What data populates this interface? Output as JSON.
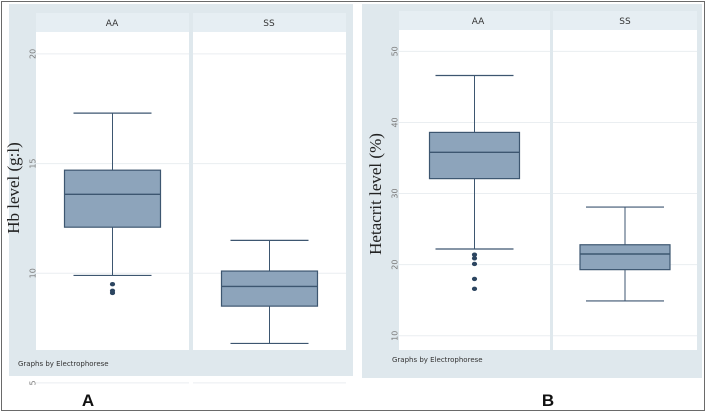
{
  "chart_data": [
    {
      "id": "A",
      "type": "boxplot",
      "panel_label": "A",
      "ylabel": "Hb level (g:l)",
      "ylim": [
        6.5,
        21
      ],
      "yticks": [
        {
          "value": 20,
          "label": "20"
        },
        {
          "value": 15,
          "label": "15"
        },
        {
          "value": 10,
          "label": "10"
        },
        {
          "value": 5,
          "label": "5"
        }
      ],
      "groups": [
        "AA",
        "SS"
      ],
      "boxes": [
        {
          "group": "AA",
          "whisker_low": 9.9,
          "q1": 12.1,
          "median": 13.6,
          "q3": 14.7,
          "whisker_high": 17.3,
          "outliers": [
            9.5,
            9.2,
            9.1
          ]
        },
        {
          "group": "SS",
          "whisker_low": 6.8,
          "q1": 8.5,
          "median": 9.4,
          "q3": 10.1,
          "whisker_high": 11.5,
          "outliers": []
        }
      ],
      "note": "Graphs by Electrophorese"
    },
    {
      "id": "B",
      "type": "boxplot",
      "panel_label": "B",
      "ylabel": "Hetacrit level (%)",
      "ylim": [
        8,
        53
      ],
      "yticks": [
        {
          "value": 50,
          "label": "50"
        },
        {
          "value": 40,
          "label": "40"
        },
        {
          "value": 30,
          "label": "30"
        },
        {
          "value": 20,
          "label": "20"
        },
        {
          "value": 10,
          "label": "10"
        }
      ],
      "groups": [
        "AA",
        "SS"
      ],
      "boxes": [
        {
          "group": "AA",
          "whisker_low": 22.2,
          "q1": 32.1,
          "median": 35.8,
          "q3": 38.6,
          "whisker_high": 46.6,
          "outliers": [
            21.4,
            20.9,
            20.1,
            18,
            16.6
          ]
        },
        {
          "group": "SS",
          "whisker_low": 14.9,
          "q1": 19.3,
          "median": 21.5,
          "q3": 22.8,
          "whisker_high": 28.1,
          "outliers": []
        }
      ],
      "note": "Graphs by Electrophorese"
    }
  ],
  "colors": {
    "outer_bg": "#dfe8ed",
    "strip_bg": "#e6eef3",
    "plot_bg": "#ffffff",
    "box_fill": "#8da4bb",
    "box_stroke": "#3d5670",
    "whisker": "#3d5670",
    "outlier": "#2c4560",
    "grid": "#eaeef1"
  }
}
